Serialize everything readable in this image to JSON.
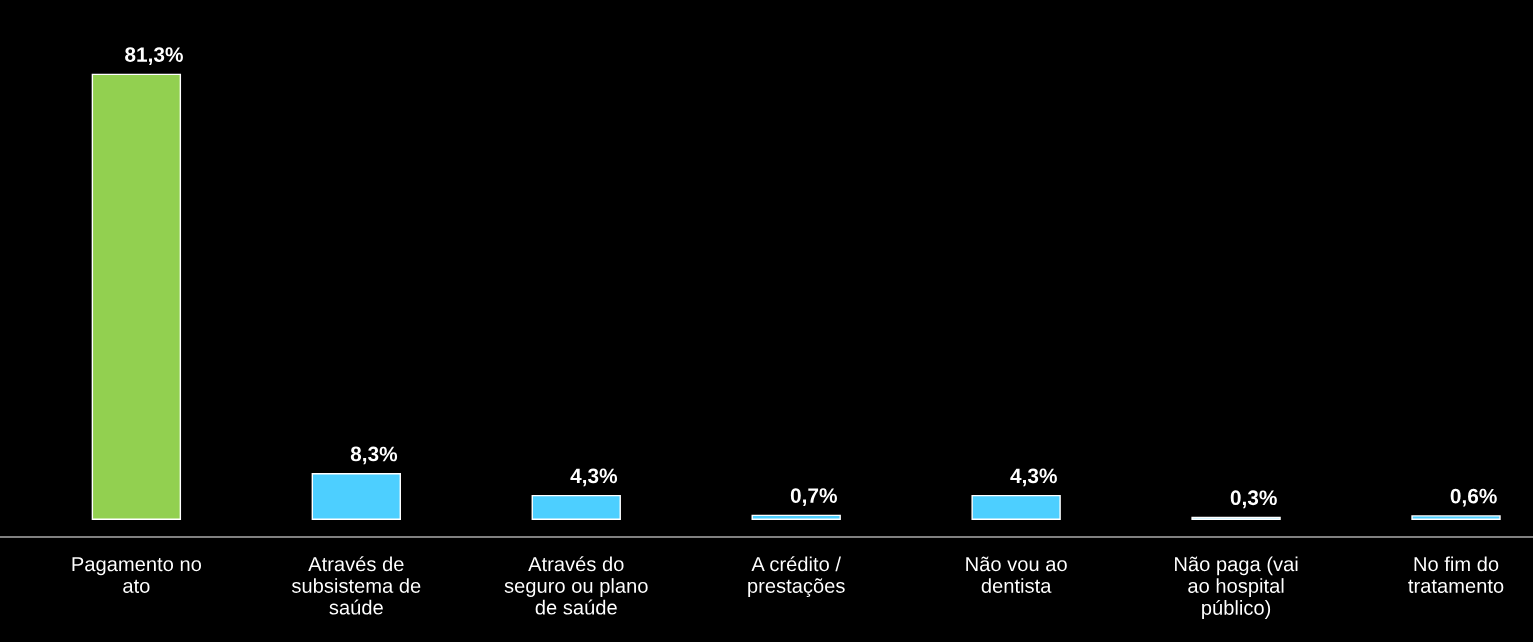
{
  "chart_data": {
    "type": "bar",
    "categories": [
      "Pagamento no\nato",
      "Através de\nsubsistema de\nsaúde",
      "Através do\nseguro ou plano\nde saúde",
      "A crédito /\nprestações",
      "Não vou ao\ndentista",
      "Não paga (vai\nao hospital\npúblico)",
      "No fim do\ntratamento"
    ],
    "values": [
      81.3,
      8.3,
      4.3,
      0.7,
      4.3,
      0.3,
      0.6
    ],
    "colors": [
      "#92d050",
      "#4dcfff",
      "#4dcfff",
      "#4dcfff",
      "#4dcfff",
      "#4dcfff",
      "#4dcfff"
    ],
    "value_labels": [
      "81,3%",
      "8,3%",
      "4,3%",
      "0,7%",
      "4,3%",
      "0,3%",
      "0,6%"
    ],
    "grid": false,
    "legend": false
  }
}
